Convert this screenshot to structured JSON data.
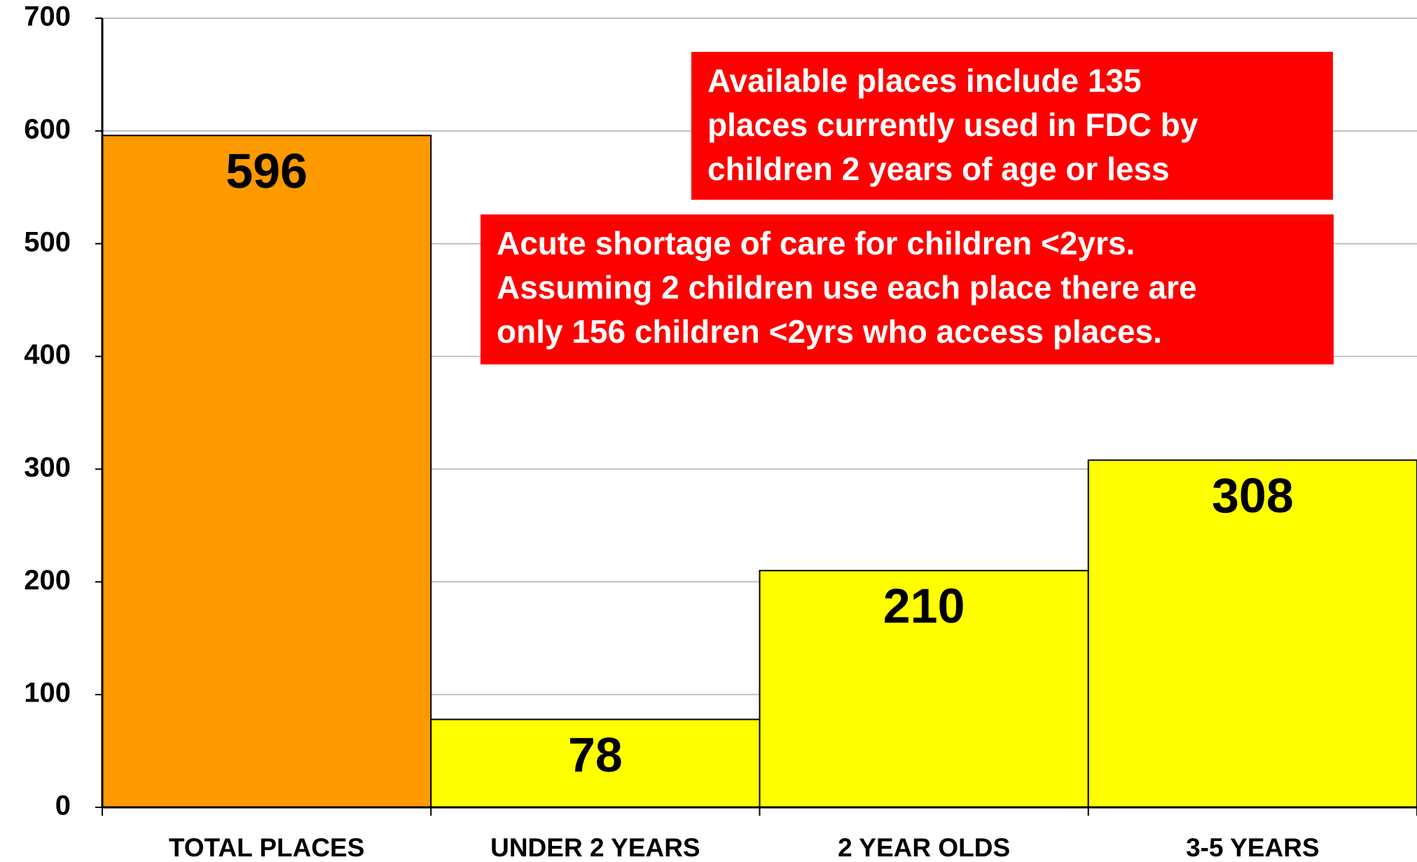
{
  "chart_data": {
    "type": "bar",
    "categories": [
      "TOTAL PLACES",
      "UNDER 2 YEARS",
      "2 YEAR OLDS",
      "3-5 YEARS"
    ],
    "values": [
      596,
      78,
      210,
      308
    ],
    "colors": [
      "#ff9900",
      "#ffff00",
      "#ffff00",
      "#ffff00"
    ],
    "ylim": [
      0,
      700
    ],
    "yticks": [
      0,
      100,
      200,
      300,
      400,
      500,
      600,
      700
    ],
    "grid": true,
    "annotations": [
      {
        "lines": [
          "Available places include 135",
          "places currently used in FDC by",
          "children 2 years of age or less"
        ]
      },
      {
        "lines": [
          "Acute shortage of care for children <2yrs.",
          "Assuming 2 children use each place there are",
          "only 156 children <2yrs who access places."
        ]
      }
    ]
  }
}
